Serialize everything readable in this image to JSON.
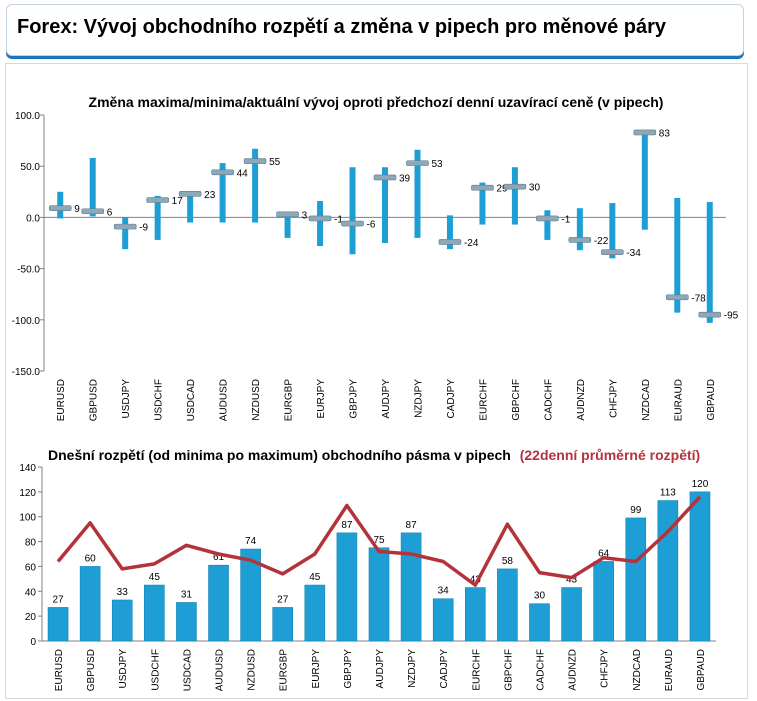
{
  "header": {
    "title": "Forex: Vývoj obchodního rozpětí a změna v pipech pro měnové páry"
  },
  "colors": {
    "bar": "#1d9fd6",
    "line": "#b4333a",
    "marker": "#8fa8b8",
    "subtitle_red": "#b4333a"
  },
  "chart_data": [
    {
      "type": "range",
      "title": "Změna maxima/minima/aktuální vývoj oproti předchozí denní uzavírací ceně (v pipech)",
      "categories": [
        "EURUSD",
        "GBPUSD",
        "USDJPY",
        "USDCHF",
        "USDCAD",
        "AUDUSD",
        "NZDUSD",
        "EURGBP",
        "EURJPY",
        "GBPJPY",
        "AUDJPY",
        "NZDJPY",
        "CADJPY",
        "EURCHF",
        "GBPCHF",
        "CADCHF",
        "AUDNZD",
        "CHFJPY",
        "NZDCAD",
        "EURAUD",
        "GBPAUD"
      ],
      "high": [
        25,
        58,
        0,
        21,
        25,
        53,
        67,
        5,
        16,
        49,
        49,
        66,
        2,
        34,
        49,
        7,
        9,
        14,
        85,
        19,
        15
      ],
      "low": [
        -1,
        1,
        -31,
        -22,
        -5,
        -5,
        -5,
        -20,
        -28,
        -36,
        -25,
        -20,
        -31,
        -7,
        -7,
        -22,
        -32,
        -40,
        -12,
        -93,
        -103
      ],
      "current": [
        9,
        6,
        -9,
        17,
        23,
        44,
        55,
        3,
        -1,
        -6,
        39,
        53,
        -24,
        29,
        30,
        -1,
        -22,
        -34,
        83,
        -78,
        -95
      ],
      "current_labels": [
        "9",
        "6",
        "-9",
        "17",
        "23",
        "44",
        "55",
        "3",
        "-1",
        "-6",
        "39",
        "53",
        "-24",
        "29",
        "30",
        "-1",
        "-22",
        "-34",
        "83",
        "-78",
        "-95"
      ],
      "ylim": [
        -150,
        100
      ],
      "y_ticks": [
        "100.0",
        "50.0",
        "0.0",
        "-50.0",
        "-100.0",
        "-150.0"
      ]
    },
    {
      "type": "bar+line",
      "title": "Dnešní rozpětí (od minima po maximum) obchodního pásma v pipech",
      "title_highlight": "(22denní průměrné rozpětí)",
      "categories": [
        "EURUSD",
        "GBPUSD",
        "USDJPY",
        "USDCHF",
        "USDCAD",
        "AUDUSD",
        "NZDUSD",
        "EURGBP",
        "EURJPY",
        "GBPJPY",
        "AUDJPY",
        "NZDJPY",
        "CADJPY",
        "EURCHF",
        "GBPCHF",
        "CADCHF",
        "AUDNZD",
        "CHFJPY",
        "NZDCAD",
        "EURAUD",
        "GBPAUD"
      ],
      "values": [
        27,
        60,
        33,
        45,
        31,
        61,
        74,
        27,
        45,
        87,
        75,
        87,
        34,
        43,
        58,
        30,
        43,
        64,
        99,
        113,
        120
      ],
      "value_labels": [
        "27",
        "60",
        "33",
        "45",
        "31",
        "61",
        "74",
        "27",
        "45",
        "87",
        "75",
        "87",
        "34",
        "43",
        "58",
        "30",
        "43",
        "64",
        "99",
        "113",
        "120"
      ],
      "average": [
        64,
        95,
        58,
        62,
        77,
        70,
        65,
        54,
        70,
        109,
        72,
        70,
        64,
        45,
        94,
        55,
        51,
        67,
        64,
        88,
        116
      ],
      "ylim": [
        0,
        140
      ],
      "y_ticks": [
        "0",
        "20",
        "40",
        "60",
        "80",
        "100",
        "120",
        "140"
      ]
    }
  ]
}
